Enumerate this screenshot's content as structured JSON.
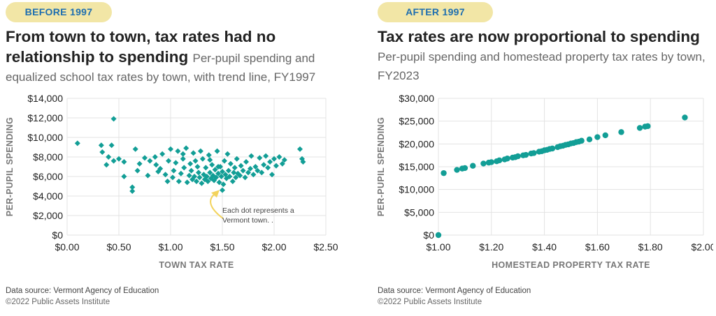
{
  "colors": {
    "accent": "#129e96",
    "badge_bg": "#f2e6a6",
    "badge_text": "#1e6eb0",
    "arrow": "#f3d35c"
  },
  "left": {
    "badge": "BEFORE 1997",
    "headline": "From town to town, tax rates had no relationship to spending",
    "subhead": "Per-pupil spending and equalized school tax rates by town, with trend line, FY1997",
    "source": "Data source: Vermont Agency of Education",
    "copyright": "©2022 Public Assets Institute"
  },
  "right": {
    "badge": "AFTER 1997",
    "headline": "Tax rates are now proportional to spending",
    "subhead": "Per-pupil spending and homestead property tax rates by town, FY2023",
    "source": "Data source: Vermont Agency of Education",
    "copyright": "©2022 Public Assets Institute"
  },
  "chart_data": [
    {
      "type": "scatter",
      "marker": "diamond",
      "xlabel": "TOWN TAX RATE",
      "ylabel": "PER-PUPIL SPENDING",
      "xlim": [
        0,
        2.5
      ],
      "ylim": [
        0,
        14000
      ],
      "xticks": [
        "$0.00",
        "$0.50",
        "$1.00",
        "$1.50",
        "$2.00",
        "$2.50"
      ],
      "yticks": [
        "$0",
        "$2,000",
        "$4,000",
        "$6,000",
        "$8,000",
        "$10,000",
        "$12,000",
        "$14,000"
      ],
      "grid": "horizontal and vertical",
      "annotation": "Each dot represents a Vermont town. .",
      "points": [
        [
          0.1,
          9400
        ],
        [
          0.33,
          9200
        ],
        [
          0.34,
          8500
        ],
        [
          0.38,
          7200
        ],
        [
          0.4,
          8000
        ],
        [
          0.43,
          9200
        ],
        [
          0.45,
          11900
        ],
        [
          0.45,
          7600
        ],
        [
          0.5,
          7800
        ],
        [
          0.55,
          6000
        ],
        [
          0.55,
          7500
        ],
        [
          0.63,
          4900
        ],
        [
          0.63,
          4500
        ],
        [
          0.66,
          8800
        ],
        [
          0.68,
          6600
        ],
        [
          0.7,
          7300
        ],
        [
          0.75,
          7900
        ],
        [
          0.78,
          6100
        ],
        [
          0.8,
          7600
        ],
        [
          0.85,
          8000
        ],
        [
          0.86,
          7200
        ],
        [
          0.88,
          6500
        ],
        [
          0.9,
          6800
        ],
        [
          0.92,
          8300
        ],
        [
          0.95,
          6200
        ],
        [
          0.97,
          5500
        ],
        [
          0.98,
          7600
        ],
        [
          1.0,
          8800
        ],
        [
          1.02,
          5900
        ],
        [
          1.03,
          6600
        ],
        [
          1.05,
          7400
        ],
        [
          1.07,
          8600
        ],
        [
          1.08,
          5500
        ],
        [
          1.1,
          6300
        ],
        [
          1.12,
          7800
        ],
        [
          1.13,
          6900
        ],
        [
          1.15,
          8900
        ],
        [
          1.16,
          5400
        ],
        [
          1.18,
          6100
        ],
        [
          1.19,
          7300
        ],
        [
          1.2,
          6600
        ],
        [
          1.21,
          5700
        ],
        [
          1.22,
          8400
        ],
        [
          1.23,
          6000
        ],
        [
          1.25,
          5500
        ],
        [
          1.26,
          7000
        ],
        [
          1.27,
          6400
        ],
        [
          1.28,
          5900
        ],
        [
          1.29,
          8600
        ],
        [
          1.3,
          5300
        ],
        [
          1.31,
          7800
        ],
        [
          1.32,
          6200
        ],
        [
          1.33,
          5700
        ],
        [
          1.34,
          6900
        ],
        [
          1.35,
          6000
        ],
        [
          1.36,
          5500
        ],
        [
          1.37,
          8200
        ],
        [
          1.38,
          6400
        ],
        [
          1.39,
          5800
        ],
        [
          1.4,
          7200
        ],
        [
          1.41,
          6100
        ],
        [
          1.42,
          5600
        ],
        [
          1.43,
          6700
        ],
        [
          1.44,
          5900
        ],
        [
          1.45,
          8600
        ],
        [
          1.46,
          6300
        ],
        [
          1.47,
          5400
        ],
        [
          1.48,
          7000
        ],
        [
          1.49,
          6000
        ],
        [
          1.5,
          6500
        ],
        [
          1.51,
          5200
        ],
        [
          1.52,
          7600
        ],
        [
          1.53,
          6200
        ],
        [
          1.54,
          5800
        ],
        [
          1.55,
          8300
        ],
        [
          1.56,
          6600
        ],
        [
          1.57,
          6000
        ],
        [
          1.58,
          7300
        ],
        [
          1.6,
          5500
        ],
        [
          1.61,
          6400
        ],
        [
          1.62,
          6900
        ],
        [
          1.63,
          5900
        ],
        [
          1.64,
          7800
        ],
        [
          1.65,
          6300
        ],
        [
          1.67,
          6100
        ],
        [
          1.68,
          7100
        ],
        [
          1.7,
          6600
        ],
        [
          1.72,
          5900
        ],
        [
          1.73,
          7500
        ],
        [
          1.75,
          6400
        ],
        [
          1.77,
          6800
        ],
        [
          1.78,
          8100
        ],
        [
          1.8,
          6200
        ],
        [
          1.82,
          7000
        ],
        [
          1.84,
          6600
        ],
        [
          1.86,
          7900
        ],
        [
          1.88,
          6400
        ],
        [
          1.9,
          7200
        ],
        [
          1.92,
          8100
        ],
        [
          1.94,
          6900
        ],
        [
          1.96,
          7500
        ],
        [
          1.98,
          6200
        ],
        [
          2.0,
          7800
        ],
        [
          2.02,
          7100
        ],
        [
          2.05,
          8000
        ],
        [
          2.08,
          7300
        ],
        [
          2.1,
          7700
        ],
        [
          2.25,
          8800
        ],
        [
          2.27,
          7800
        ],
        [
          2.28,
          7500
        ],
        [
          1.5,
          4600
        ],
        [
          1.38,
          7700
        ],
        [
          1.46,
          7000
        ],
        [
          1.24,
          7600
        ],
        [
          1.12,
          8300
        ]
      ]
    },
    {
      "type": "scatter",
      "marker": "circle",
      "xlabel": "HOMESTEAD PROPERTY TAX RATE",
      "ylabel": "PER-PUPIL SPENDING",
      "xlim": [
        1.0,
        2.0
      ],
      "ylim": [
        0,
        30000
      ],
      "xticks": [
        "$1.00",
        "$1.20",
        "$1.40",
        "$1.60",
        "$1.80",
        "$2.00"
      ],
      "yticks": [
        "$0",
        "$5,000",
        "$10,000",
        "$15,000",
        "$20,000",
        "$25,000",
        "$30,000"
      ],
      "grid": "horizontal and vertical",
      "points": [
        [
          1.0,
          0
        ],
        [
          1.02,
          13600
        ],
        [
          1.07,
          14300
        ],
        [
          1.09,
          14600
        ],
        [
          1.1,
          14700
        ],
        [
          1.13,
          15200
        ],
        [
          1.17,
          15700
        ],
        [
          1.19,
          15900
        ],
        [
          1.2,
          16000
        ],
        [
          1.22,
          16200
        ],
        [
          1.23,
          16400
        ],
        [
          1.25,
          16600
        ],
        [
          1.26,
          16800
        ],
        [
          1.28,
          17000
        ],
        [
          1.29,
          17100
        ],
        [
          1.3,
          17300
        ],
        [
          1.32,
          17500
        ],
        [
          1.33,
          17600
        ],
        [
          1.35,
          17900
        ],
        [
          1.36,
          18000
        ],
        [
          1.38,
          18300
        ],
        [
          1.39,
          18400
        ],
        [
          1.4,
          18600
        ],
        [
          1.41,
          18700
        ],
        [
          1.42,
          18900
        ],
        [
          1.43,
          19000
        ],
        [
          1.45,
          19300
        ],
        [
          1.46,
          19500
        ],
        [
          1.47,
          19600
        ],
        [
          1.48,
          19800
        ],
        [
          1.49,
          19900
        ],
        [
          1.5,
          20100
        ],
        [
          1.51,
          20200
        ],
        [
          1.52,
          20400
        ],
        [
          1.53,
          20500
        ],
        [
          1.54,
          20700
        ],
        [
          1.57,
          21000
        ],
        [
          1.6,
          21500
        ],
        [
          1.63,
          21900
        ],
        [
          1.69,
          22600
        ],
        [
          1.76,
          23500
        ],
        [
          1.78,
          23800
        ],
        [
          1.79,
          23900
        ],
        [
          1.93,
          25800
        ]
      ]
    }
  ]
}
